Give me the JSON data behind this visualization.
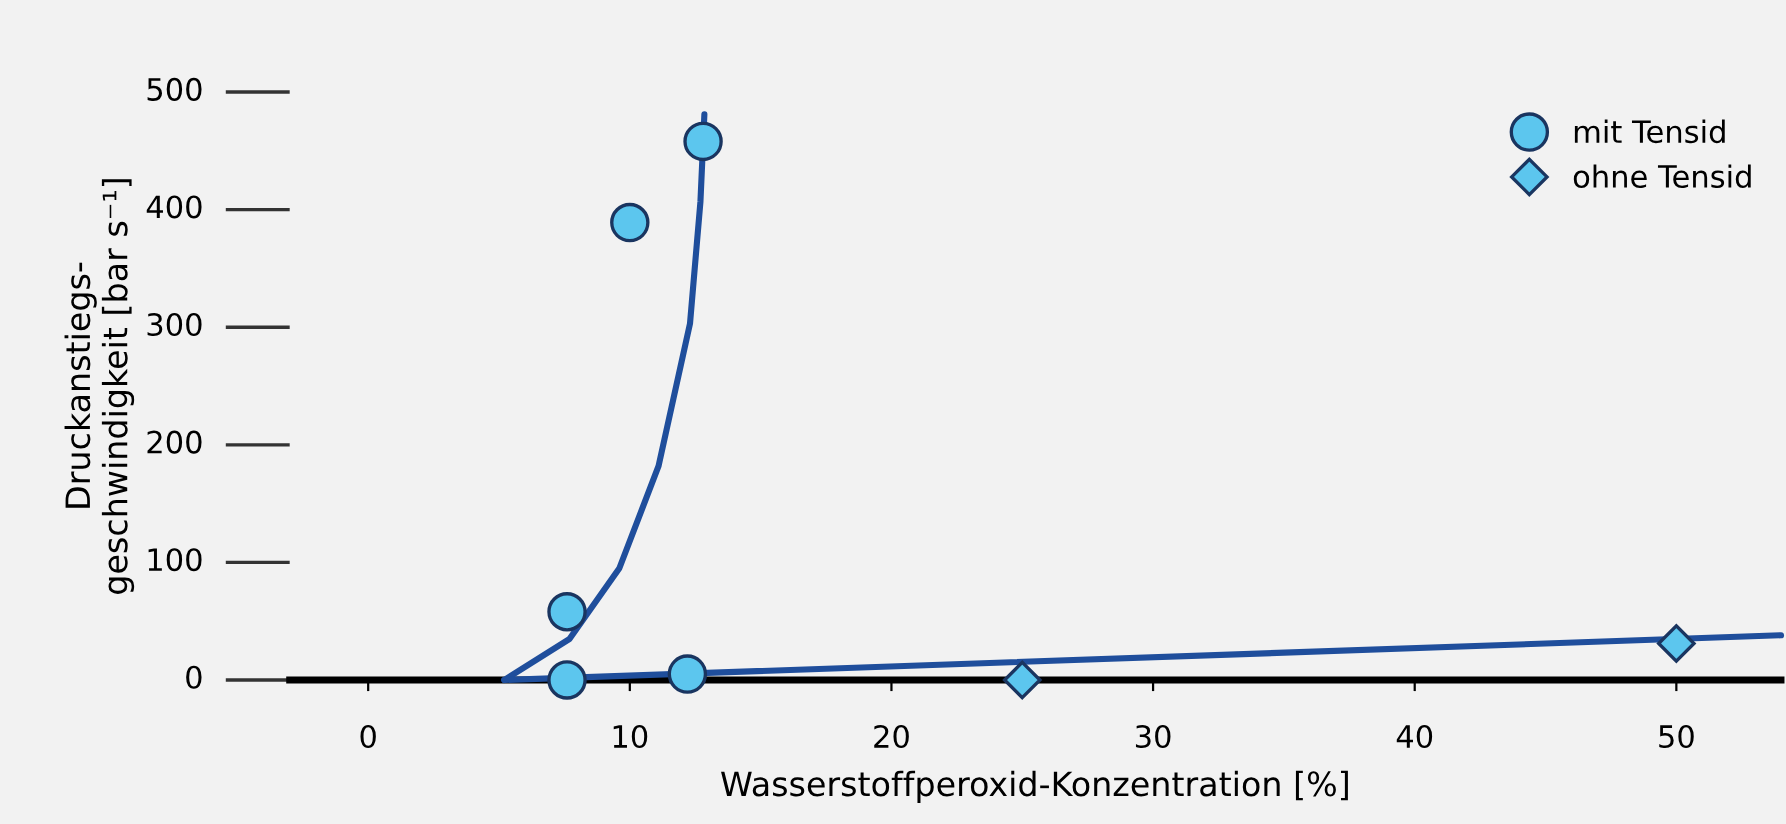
{
  "chart_data": {
    "type": "scatter",
    "xlabel": "Wasserstoffperoxid-Konzentration [%]",
    "ylabel": "Druckanstiegs-\ngeschwindigkeit [bar s⁻¹]",
    "xlim": [
      -3,
      54
    ],
    "ylim": [
      0,
      500
    ],
    "xticks": [
      0,
      10,
      20,
      30,
      40,
      50
    ],
    "yticks": [
      0,
      100,
      200,
      300,
      400,
      500
    ],
    "grid": false,
    "legend": "top right",
    "series": [
      {
        "name": "mit Tensid",
        "marker": "circle",
        "color": "#5cc6ee",
        "x": [
          7.6,
          7.6,
          10,
          12.2,
          12.8
        ],
        "values": [
          58,
          0,
          389,
          5,
          458
        ]
      },
      {
        "name": "ohne Tensid",
        "marker": "diamond",
        "color": "#5cc6ee",
        "x": [
          25,
          50
        ],
        "values": [
          0,
          31
        ]
      },
      {
        "type": "line",
        "marker": "none",
        "color": "#1f4e9c",
        "x": [
          5.2,
          7.7,
          9.6,
          11.1,
          12.3,
          12.7,
          12.85
        ],
        "values": [
          0,
          35,
          95,
          182,
          303,
          407,
          481
        ]
      },
      {
        "type": "line",
        "marker": "none",
        "color": "#1f4e9c",
        "x": [
          5.2,
          54
        ],
        "values": [
          0,
          38
        ]
      }
    ]
  }
}
